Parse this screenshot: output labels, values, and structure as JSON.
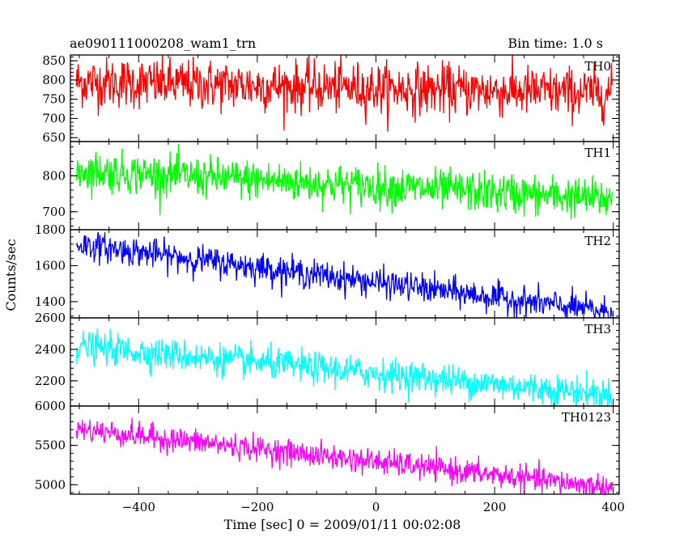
{
  "header": {
    "left_title": "ae090111000208_wam1_trn",
    "right_title": "Bin time: 1.0 s"
  },
  "chart_data": {
    "type": "line",
    "x_axis": {
      "label": "Time [sec] 0 = 2009/01/11 00:02:08",
      "range": [
        -515,
        410
      ],
      "ticks": [
        -400,
        -200,
        0,
        200,
        400
      ],
      "tick_labels": [
        "−400",
        "−200",
        "0",
        "200",
        "400"
      ],
      "data_range": [
        -505,
        398
      ],
      "bin_time_s": 1.0
    },
    "y_axis": {
      "label": "Counts/sec"
    },
    "grid": false,
    "panels": [
      {
        "name": "TH0",
        "color": "#ff0000",
        "ylim": [
          640,
          865
        ],
        "ticks": [
          650,
          700,
          750,
          800,
          850
        ],
        "tick_labels": [
          "650",
          "700",
          "750",
          "800",
          "850"
        ],
        "trend": {
          "start": 795,
          "end": 765
        },
        "noise_sd": 33
      },
      {
        "name": "TH1",
        "color": "#00ff00",
        "ylim": [
          650,
          895
        ],
        "ticks": [
          700,
          800
        ],
        "tick_labels": [
          "700",
          "800"
        ],
        "trend": {
          "start": 815,
          "end": 735
        },
        "noise_sd": 28
      },
      {
        "name": "TH2",
        "color": "#0000ff",
        "ylim": [
          1310,
          1800
        ],
        "ticks": [
          1400,
          1600,
          1800
        ],
        "tick_labels": [
          "1400",
          "1600",
          "1800"
        ],
        "trend": {
          "start": 1720,
          "end": 1340
        },
        "noise_sd": 40
      },
      {
        "name": "TH3",
        "color": "#00ffff",
        "ylim": [
          2040,
          2600
        ],
        "ticks": [
          2200,
          2400,
          2600
        ],
        "tick_labels": [
          "2200",
          "2400",
          "2600"
        ],
        "trend": {
          "start": 2420,
          "end": 2110
        },
        "noise_sd": 50
      },
      {
        "name": "TH0123",
        "color": "#ff00ff",
        "ylim": [
          4880,
          6000
        ],
        "ticks": [
          5000,
          5500,
          6000
        ],
        "tick_labels": [
          "5000",
          "5500",
          "6000"
        ],
        "trend": {
          "start": 5710,
          "end": 4960
        },
        "noise_sd": 80
      }
    ]
  }
}
